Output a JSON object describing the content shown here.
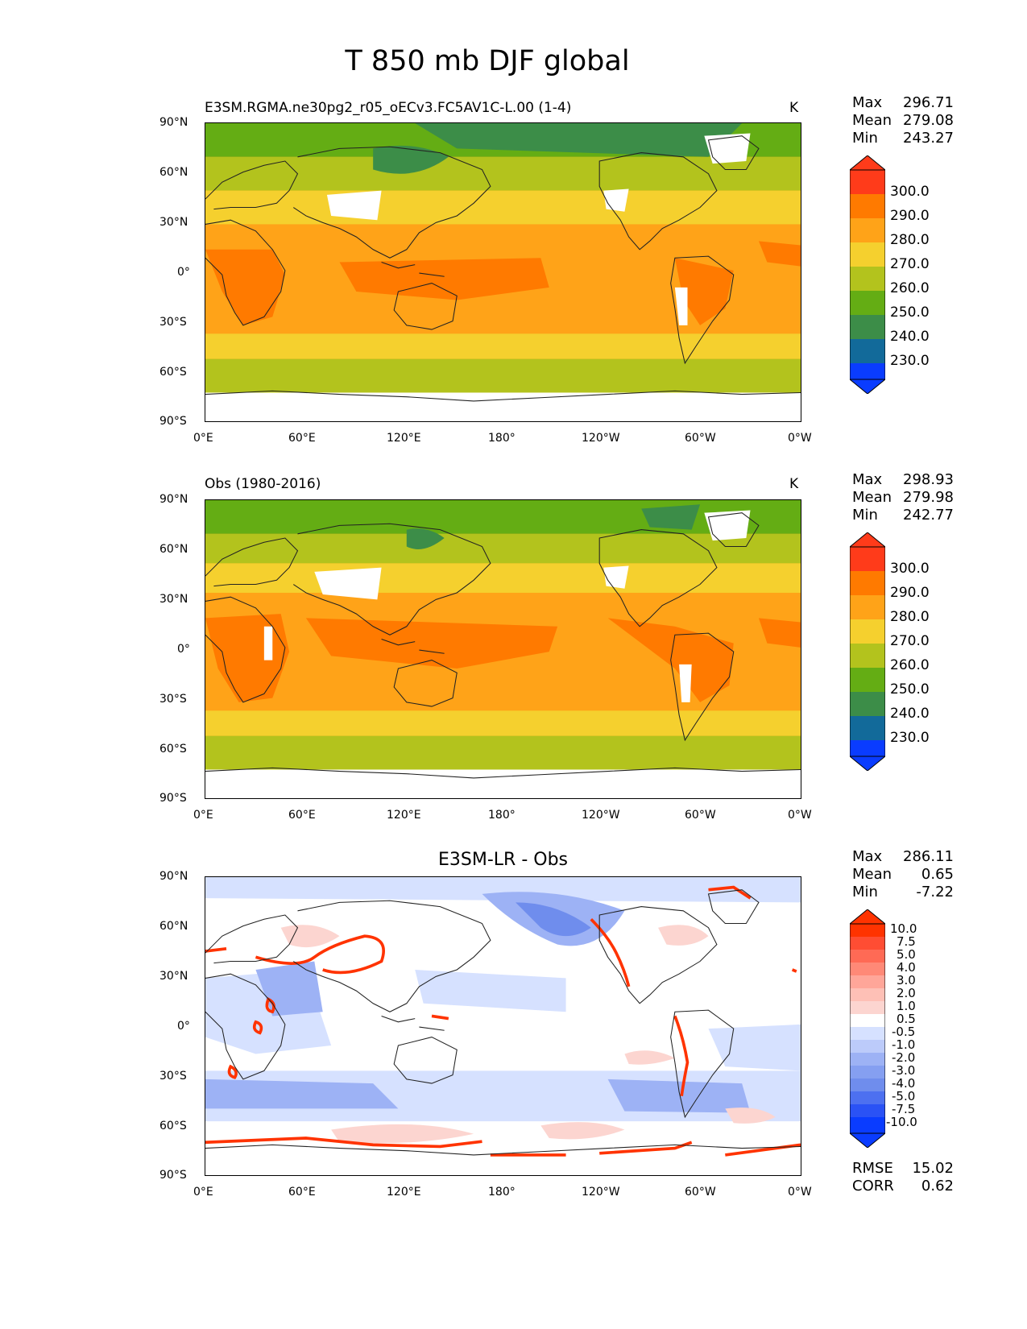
{
  "figure_title": "T 850 mb DJF global",
  "axes": {
    "lat_ticks": [
      "90°N",
      "60°N",
      "30°N",
      "0°",
      "30°S",
      "60°S",
      "90°S"
    ],
    "lon_ticks": [
      "0°E",
      "60°E",
      "120°E",
      "180°",
      "120°W",
      "60°W",
      "0°W"
    ]
  },
  "colors": {
    "c300": "#ff3b1a",
    "c290": "#ff7a00",
    "c280": "#ffa318",
    "c270": "#f5d02e",
    "c260": "#b3c31d",
    "c250": "#64ad14",
    "c240": "#3c8d48",
    "c230": "#126a9a",
    "c220": "#0a3cff",
    "land_outline": "#222222",
    "diff_pos_strong": "#ff3300",
    "diff_pos_light": "#fcd5d0",
    "diff_neg_light": "#d6e1ff",
    "diff_neg_mid": "#9db2f5",
    "diff_neg_strong": "#6f8ded"
  },
  "panels": [
    {
      "title": "E3SM.RGMA.ne30pg2_r05_oECv3.FC5AV1C-L.00 (1-4)",
      "units": "K",
      "stats": {
        "max_label": "Max",
        "max": "296.71",
        "mean_label": "Mean",
        "mean": "279.08",
        "min_label": "Min",
        "min": "243.27"
      },
      "colorbar": {
        "labels": [
          "300.0",
          "290.0",
          "280.0",
          "270.0",
          "260.0",
          "250.0",
          "240.0",
          "230.0"
        ]
      }
    },
    {
      "title": "Obs (1980-2016)",
      "units": "K",
      "stats": {
        "max_label": "Max",
        "max": "298.93",
        "mean_label": "Mean",
        "mean": "279.98",
        "min_label": "Min",
        "min": "242.77"
      },
      "colorbar": {
        "labels": [
          "300.0",
          "290.0",
          "280.0",
          "270.0",
          "260.0",
          "250.0",
          "240.0",
          "230.0"
        ]
      }
    },
    {
      "title": "E3SM-LR - Obs",
      "units": "",
      "stats": {
        "max_label": "Max",
        "max": "286.11",
        "mean_label": "Mean",
        "mean": "0.65",
        "min_label": "Min",
        "min": "-7.22"
      },
      "colorbar": {
        "labels": [
          "10.0",
          "7.5",
          "5.0",
          "4.0",
          "3.0",
          "2.0",
          "1.0",
          "0.5",
          "-0.5",
          "-1.0",
          "-2.0",
          "-3.0",
          "-4.0",
          "-5.0",
          "-7.5",
          "-10.0"
        ]
      },
      "extra_stats": {
        "rmse_label": "RMSE",
        "rmse": "15.02",
        "corr_label": "CORR",
        "corr": "0.62"
      }
    }
  ]
}
